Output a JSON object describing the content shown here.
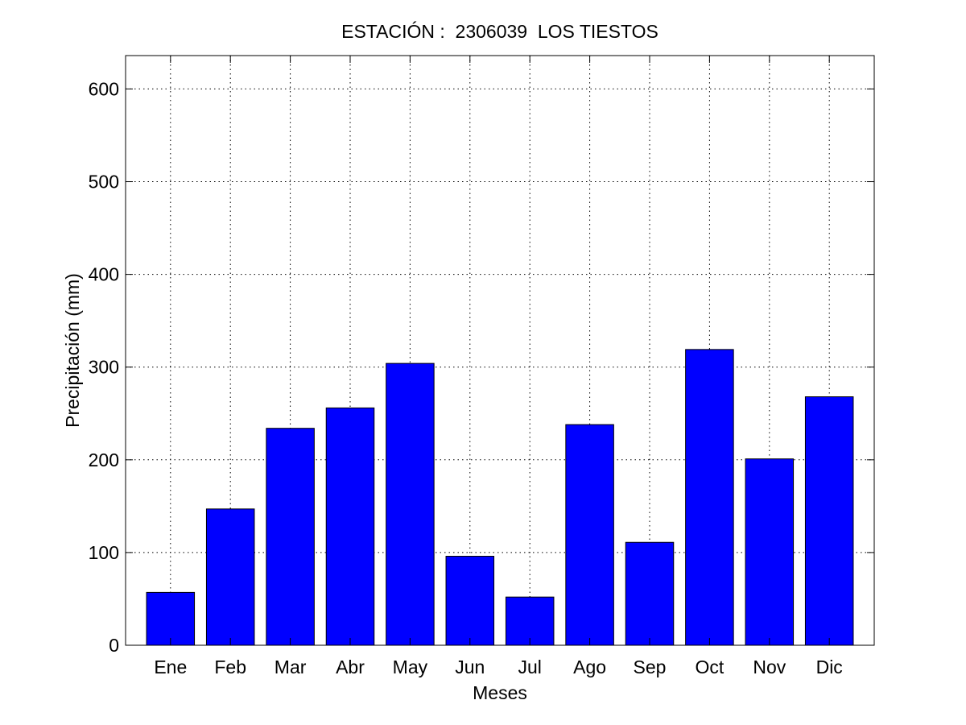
{
  "chart_data": {
    "type": "bar",
    "title": "ESTACIÓN :  2306039  LOS TIESTOS",
    "xlabel": "Meses",
    "ylabel": "Precipitación (mm)",
    "categories": [
      "Ene",
      "Feb",
      "Mar",
      "Abr",
      "May",
      "Jun",
      "Jul",
      "Ago",
      "Sep",
      "Oct",
      "Nov",
      "Dic"
    ],
    "values": [
      57,
      147,
      234,
      256,
      304,
      96,
      52,
      238,
      111,
      319,
      201,
      268
    ],
    "ylim": [
      0,
      636
    ],
    "yticks": [
      0,
      100,
      200,
      300,
      400,
      500,
      600
    ],
    "grid": true,
    "bar_color": "#0000ff",
    "edge_color": "#000000",
    "legend": null
  }
}
